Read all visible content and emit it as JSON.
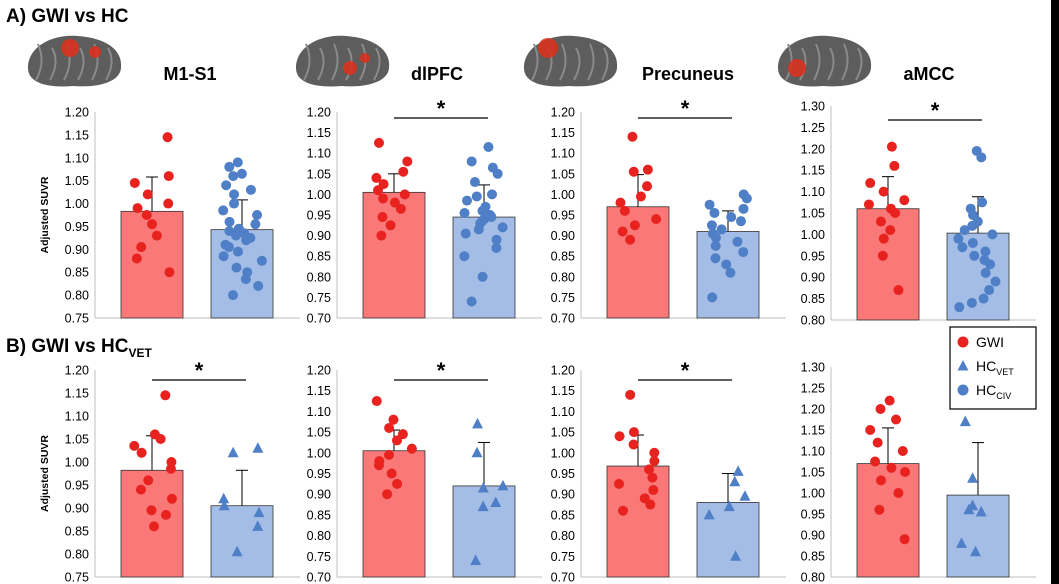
{
  "section_a_title": "A) GWI vs HC",
  "section_b_title_main": "B) GWI vs HC",
  "section_b_title_sub": "VET",
  "y_axis_label": "Adjusted SUVR",
  "legend": [
    {
      "label": "GWI",
      "sub": "",
      "marker": "circle",
      "color": "#e8231f"
    },
    {
      "label": "HC",
      "sub": "VET",
      "marker": "triangle",
      "color": "#4f7fc6"
    },
    {
      "label": "HC",
      "sub": "CIV",
      "marker": "circle",
      "color": "#4f7fc6"
    }
  ],
  "colors": {
    "gwi_bar": "#fa7878",
    "hc_bar": "#a4bde6",
    "gwi_point": "#e8231f",
    "hc_point": "#4f7fc6",
    "brain_gray": "#5d5d5d",
    "activation": "#d9321f"
  },
  "icons": [
    "brain-m1s1-icon",
    "brain-dlpfc-icon",
    "brain-precuneus-icon",
    "brain-amcc-icon"
  ],
  "chart_data": [
    {
      "type": "bar",
      "title": "M1-S1",
      "ylabel": "Adjusted SUVR",
      "ylim": [
        0.75,
        1.2
      ],
      "ticks": [
        "0.75",
        "0.80",
        "0.85",
        "0.90",
        "0.95",
        "1.00",
        "1.05",
        "1.10",
        "1.15",
        "1.20"
      ],
      "categories": [
        "GWI",
        "HC"
      ],
      "values": [
        0.983,
        0.943
      ],
      "errors": [
        0.075,
        0.065
      ],
      "significance": "",
      "points": {
        "GWI": {
          "marker": "circle",
          "values": [
            1.145,
            1.06,
            1.045,
            1.02,
            1.0,
            0.99,
            0.975,
            0.955,
            0.93,
            0.905,
            0.88,
            0.85
          ]
        },
        "HC": {
          "marker": "circle",
          "values": [
            1.09,
            1.08,
            1.065,
            1.06,
            1.04,
            1.03,
            1.02,
            1.0,
            0.985,
            0.975,
            0.96,
            0.955,
            0.945,
            0.94,
            0.935,
            0.93,
            0.925,
            0.92,
            0.91,
            0.905,
            0.895,
            0.885,
            0.875,
            0.86,
            0.85,
            0.835,
            0.82,
            0.8
          ]
        }
      }
    },
    {
      "type": "bar",
      "title": "dlPFC",
      "ylabel": "",
      "ylim": [
        0.7,
        1.2
      ],
      "ticks": [
        "0.70",
        "0.75",
        "0.80",
        "0.85",
        "0.90",
        "0.95",
        "1.00",
        "1.05",
        "1.10",
        "1.15",
        "1.20"
      ],
      "categories": [
        "GWI",
        "HC"
      ],
      "values": [
        1.005,
        0.945
      ],
      "errors": [
        0.045,
        0.078
      ],
      "significance": "*",
      "points": {
        "GWI": {
          "marker": "circle",
          "values": [
            1.125,
            1.08,
            1.055,
            1.04,
            1.025,
            1.01,
            1.0,
            0.99,
            0.98,
            0.965,
            0.945,
            0.925,
            0.9
          ]
        },
        "HC": {
          "marker": "circle",
          "values": [
            1.115,
            1.08,
            1.065,
            1.05,
            1.03,
            1.0,
            0.995,
            0.985,
            0.97,
            0.96,
            0.955,
            0.95,
            0.945,
            0.94,
            0.935,
            0.93,
            0.92,
            0.915,
            0.905,
            0.89,
            0.87,
            0.85,
            0.8,
            0.74
          ]
        }
      }
    },
    {
      "type": "bar",
      "title": "Precuneus",
      "ylabel": "",
      "ylim": [
        0.7,
        1.2
      ],
      "ticks": [
        "0.70",
        "0.75",
        "0.80",
        "0.85",
        "0.90",
        "0.95",
        "1.00",
        "1.05",
        "1.10",
        "1.15",
        "1.20"
      ],
      "categories": [
        "GWI",
        "HC"
      ],
      "values": [
        0.97,
        0.91
      ],
      "errors": [
        0.078,
        0.05
      ],
      "significance": "*",
      "points": {
        "GWI": {
          "marker": "circle",
          "values": [
            1.14,
            1.06,
            1.055,
            1.02,
            0.995,
            0.98,
            0.96,
            0.94,
            0.925,
            0.91,
            0.89
          ]
        },
        "HC": {
          "marker": "circle",
          "values": [
            1.0,
            0.99,
            0.975,
            0.965,
            0.955,
            0.945,
            0.935,
            0.925,
            0.915,
            0.905,
            0.895,
            0.885,
            0.875,
            0.86,
            0.845,
            0.83,
            0.81,
            0.75
          ]
        }
      }
    },
    {
      "type": "bar",
      "title": "aMCC",
      "ylabel": "",
      "ylim": [
        0.8,
        1.3
      ],
      "ticks": [
        "0.80",
        "0.85",
        "0.90",
        "0.95",
        "1.00",
        "1.05",
        "1.10",
        "1.15",
        "1.20",
        "1.25",
        "1.30"
      ],
      "categories": [
        "GWI",
        "HC"
      ],
      "values": [
        1.06,
        1.003
      ],
      "errors": [
        0.075,
        0.085
      ],
      "significance": "*",
      "points": {
        "GWI": {
          "marker": "circle",
          "values": [
            1.205,
            1.16,
            1.12,
            1.1,
            1.08,
            1.07,
            1.06,
            1.05,
            1.03,
            1.01,
            0.99,
            0.95,
            0.87
          ]
        },
        "HC": {
          "marker": "circle",
          "values": [
            1.195,
            1.18,
            1.075,
            1.06,
            1.045,
            1.03,
            1.02,
            1.01,
            1.0,
            0.99,
            0.98,
            0.97,
            0.96,
            0.95,
            0.94,
            0.93,
            0.91,
            0.89,
            0.87,
            0.85,
            0.84,
            0.83
          ]
        }
      }
    },
    {
      "type": "bar",
      "title": "",
      "ylabel": "Adjusted SUVR",
      "ylim": [
        0.75,
        1.2
      ],
      "ticks": [
        "0.75",
        "0.80",
        "0.85",
        "0.90",
        "0.95",
        "1.00",
        "1.05",
        "1.10",
        "1.15",
        "1.20"
      ],
      "categories": [
        "GWI",
        "HC"
      ],
      "values": [
        0.982,
        0.905
      ],
      "errors": [
        0.075,
        0.077
      ],
      "significance": "*",
      "points": {
        "GWI": {
          "marker": "circle",
          "values": [
            1.145,
            1.06,
            1.05,
            1.035,
            1.02,
            1.0,
            0.985,
            0.96,
            0.94,
            0.92,
            0.895,
            0.885,
            0.86
          ]
        },
        "HC": {
          "marker": "triangle",
          "values": [
            1.03,
            1.02,
            0.92,
            0.905,
            0.89,
            0.86,
            0.805
          ]
        }
      }
    },
    {
      "type": "bar",
      "title": "",
      "ylabel": "",
      "ylim": [
        0.7,
        1.2
      ],
      "ticks": [
        "0.70",
        "0.75",
        "0.80",
        "0.85",
        "0.90",
        "0.95",
        "1.00",
        "1.05",
        "1.10",
        "1.15",
        "1.20"
      ],
      "categories": [
        "GWI",
        "HC"
      ],
      "values": [
        1.005,
        0.92
      ],
      "errors": [
        0.05,
        0.105
      ],
      "significance": "*",
      "points": {
        "GWI": {
          "marker": "circle",
          "values": [
            1.125,
            1.08,
            1.06,
            1.045,
            1.03,
            1.01,
            0.995,
            0.98,
            0.97,
            0.95,
            0.925,
            0.9
          ]
        },
        "HC": {
          "marker": "triangle",
          "values": [
            1.07,
            1.0,
            0.92,
            0.915,
            0.88,
            0.87,
            0.74
          ]
        }
      }
    },
    {
      "type": "bar",
      "title": "",
      "ylabel": "",
      "ylim": [
        0.7,
        1.2
      ],
      "ticks": [
        "0.70",
        "0.75",
        "0.80",
        "0.85",
        "0.90",
        "0.95",
        "1.00",
        "1.05",
        "1.10",
        "1.15",
        "1.20"
      ],
      "categories": [
        "GWI",
        "HC"
      ],
      "values": [
        0.968,
        0.88
      ],
      "errors": [
        0.075,
        0.07
      ],
      "significance": "*",
      "points": {
        "GWI": {
          "marker": "circle",
          "values": [
            1.14,
            1.05,
            1.04,
            1.02,
            1.0,
            0.98,
            0.96,
            0.94,
            0.925,
            0.91,
            0.89,
            0.875,
            0.86
          ]
        },
        "HC": {
          "marker": "triangle",
          "values": [
            0.955,
            0.93,
            0.895,
            0.87,
            0.85,
            0.75
          ]
        }
      }
    },
    {
      "type": "bar",
      "title": "",
      "ylabel": "",
      "ylim": [
        0.8,
        1.3
      ],
      "ticks": [
        "0.80",
        "0.85",
        "0.90",
        "0.95",
        "1.00",
        "1.05",
        "1.10",
        "1.15",
        "1.20",
        "1.25",
        "1.30"
      ],
      "categories": [
        "GWI",
        "HC"
      ],
      "values": [
        1.07,
        0.995
      ],
      "errors": [
        0.085,
        0.125
      ],
      "significance": "",
      "points": {
        "GWI": {
          "marker": "circle",
          "values": [
            1.22,
            1.2,
            1.175,
            1.15,
            1.12,
            1.1,
            1.075,
            1.06,
            1.05,
            1.03,
            1.0,
            0.96,
            0.89
          ]
        },
        "HC": {
          "marker": "triangle",
          "values": [
            1.17,
            1.035,
            0.97,
            0.96,
            0.955,
            0.88,
            0.86
          ]
        }
      }
    }
  ]
}
